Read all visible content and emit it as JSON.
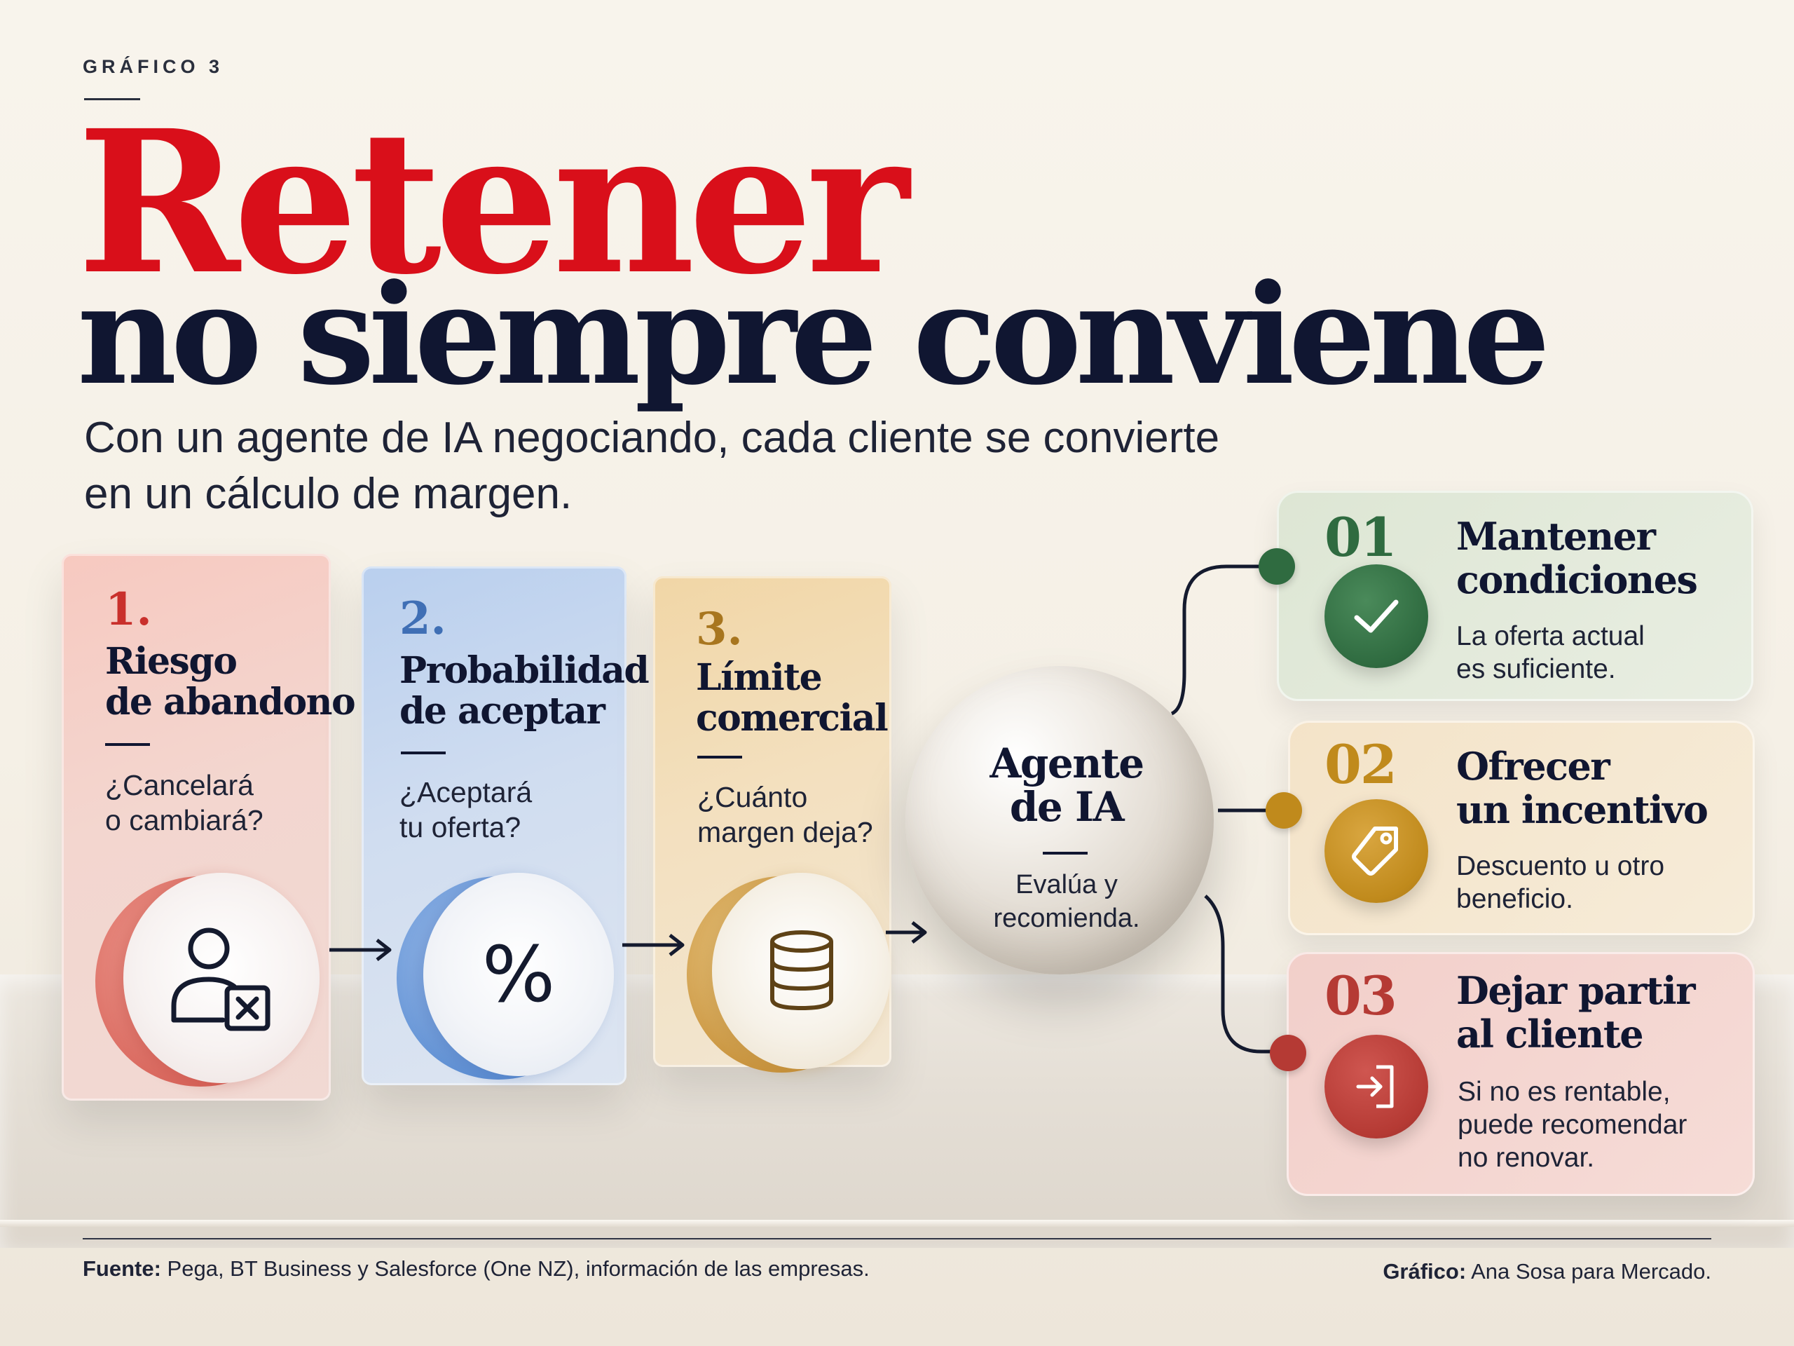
{
  "header": {
    "kicker": "GRÁFICO 3",
    "title_line1": "Retener",
    "title_line2": "no siempre conviene",
    "subtitle_line1": "Con un agente de IA negociando, cada cliente se convierte",
    "subtitle_line2": "en un cálculo de margen."
  },
  "steps": [
    {
      "number": "1.",
      "title_line1": "Riesgo",
      "title_line2": "de abandono",
      "question_line1": "¿Cancelará",
      "question_line2": "o cambiará?",
      "icon": "user-x-icon",
      "color": "#c9302c"
    },
    {
      "number": "2.",
      "title_line1": "Probabilidad",
      "title_line2": "de aceptar",
      "question_line1": "¿Aceptará",
      "question_line2": "tu oferta?",
      "icon_text": "%",
      "icon": "percent-icon",
      "color": "#3f6fb5"
    },
    {
      "number": "3.",
      "title_line1": "Límite",
      "title_line2": "comercial",
      "question_line1": "¿Cuánto",
      "question_line2": "margen deja?",
      "icon": "coins-stack-icon",
      "color": "#a8761f"
    }
  ],
  "agent": {
    "title_line1": "Agente",
    "title_line2": "de IA",
    "text_line1": "Evalúa y",
    "text_line2": "recomienda."
  },
  "options": [
    {
      "number": "01",
      "title_line1": "Mantener",
      "title_line2": "condiciones",
      "text_lines": [
        "La oferta actual",
        "es suficiente."
      ],
      "icon": "checkmark-icon",
      "color": "#2f6b40"
    },
    {
      "number": "02",
      "title_line1": "Ofrecer",
      "title_line2": "un incentivo",
      "text_lines": [
        "Descuento u otro",
        "beneficio."
      ],
      "icon": "price-tag-icon",
      "color": "#c08a1c"
    },
    {
      "number": "03",
      "title_line1": "Dejar partir",
      "title_line2": "al cliente",
      "text_lines": [
        "Si no es rentable,",
        "puede recomendar",
        "no renovar."
      ],
      "icon": "exit-door-icon",
      "color": "#b53a34"
    }
  ],
  "footer": {
    "source_label": "Fuente:",
    "source_text": " Pega, BT Business y Salesforce (One NZ), información de las empresas.",
    "credit_label": "Gráfico:",
    "credit_text": " Ana Sosa para Mercado."
  },
  "colors": {
    "title_red": "#d90f1a",
    "navy": "#101631"
  }
}
